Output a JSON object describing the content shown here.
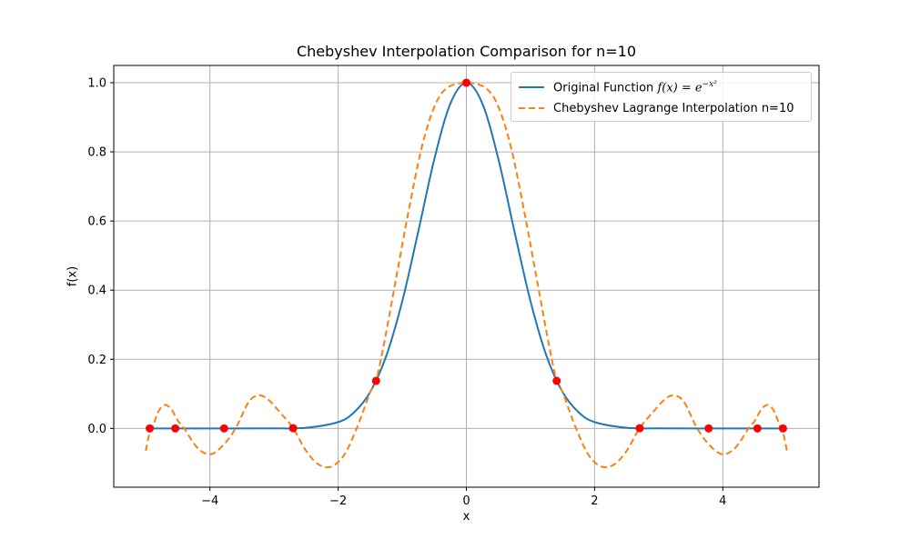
{
  "chart_data": {
    "type": "line",
    "title": "Chebyshev Interpolation Comparison for n=10",
    "xlabel": "x",
    "ylabel": "f(x)",
    "xlim": [
      -5.5,
      5.5
    ],
    "ylim": [
      -0.17,
      1.05
    ],
    "x_ticks": [
      -4,
      -2,
      0,
      2,
      4
    ],
    "x_tick_labels": [
      "−4",
      "−2",
      "0",
      "2",
      "4"
    ],
    "y_ticks": [
      0.0,
      0.2,
      0.4,
      0.6,
      0.8,
      1.0
    ],
    "y_tick_labels": [
      "0.0",
      "0.2",
      "0.4",
      "0.6",
      "0.8",
      "1.0"
    ],
    "grid": true,
    "legend_position": "upper right",
    "series": [
      {
        "name": "Original Function f(x) = e^{-x^2}",
        "style": "solid",
        "color": "#1f77b4",
        "x": [
          -5.0,
          -4.0,
          -3.0,
          -2.5,
          -2.0,
          -1.75,
          -1.5,
          -1.25,
          -1.0,
          -0.75,
          -0.5,
          -0.25,
          0.0,
          0.25,
          0.5,
          0.75,
          1.0,
          1.25,
          1.5,
          1.75,
          2.0,
          2.5,
          3.0,
          4.0,
          5.0
        ],
        "y": [
          0.0,
          0.0,
          0.0001,
          0.0019,
          0.0183,
          0.0468,
          0.1054,
          0.2096,
          0.3679,
          0.5698,
          0.7788,
          0.9394,
          1.0,
          0.9394,
          0.7788,
          0.5698,
          0.3679,
          0.2096,
          0.1054,
          0.0468,
          0.0183,
          0.0019,
          0.0001,
          0.0,
          0.0
        ]
      },
      {
        "name": "Chebyshev Lagrange Interpolation n=10",
        "style": "dashed",
        "color": "#ff7f0e",
        "x": [
          -5.0,
          -4.95,
          -4.9,
          -4.8,
          -4.7,
          -4.6,
          -4.5,
          -4.4,
          -4.2,
          -4.0,
          -3.8,
          -3.6,
          -3.4,
          -3.25,
          -3.1,
          -2.9,
          -2.7,
          -2.5,
          -2.3,
          -2.1,
          -1.9,
          -1.7,
          -1.5,
          -1.414,
          -1.3,
          -1.1,
          -0.9,
          -0.7,
          -0.5,
          -0.3,
          0.0,
          0.3,
          0.5,
          0.7,
          0.9,
          1.1,
          1.3,
          1.414,
          1.5,
          1.7,
          1.9,
          2.1,
          2.3,
          2.5,
          2.7,
          2.9,
          3.1,
          3.25,
          3.4,
          3.6,
          3.8,
          4.0,
          4.2,
          4.4,
          4.5,
          4.6,
          4.7,
          4.8,
          4.9,
          4.95,
          5.0
        ],
        "y": [
          -0.065,
          -0.02,
          0.0,
          0.05,
          0.068,
          0.055,
          0.022,
          0.0,
          -0.055,
          -0.075,
          -0.05,
          0.0,
          0.075,
          0.095,
          0.085,
          0.045,
          0.0,
          -0.065,
          -0.105,
          -0.11,
          -0.075,
          0.005,
          0.105,
          0.1353,
          0.23,
          0.43,
          0.63,
          0.81,
          0.93,
          0.985,
          1.0,
          0.985,
          0.93,
          0.81,
          0.63,
          0.43,
          0.23,
          0.1353,
          0.105,
          0.005,
          -0.075,
          -0.11,
          -0.105,
          -0.065,
          0.0,
          0.045,
          0.085,
          0.095,
          0.075,
          0.0,
          -0.05,
          -0.075,
          -0.055,
          0.0,
          0.022,
          0.055,
          0.068,
          0.05,
          0.0,
          -0.02,
          -0.065
        ]
      }
    ],
    "nodes": {
      "color": "#ff0000",
      "x": [
        -4.9384,
        -4.5399,
        -3.7787,
        -2.7032,
        -1.4087,
        0.0,
        1.4087,
        2.7032,
        3.7787,
        4.5399,
        4.9384
      ],
      "y": [
        0.0,
        0.0,
        0.0,
        0.0007,
        0.1375,
        1.0,
        0.1375,
        0.0007,
        0.0,
        0.0,
        0.0
      ]
    }
  },
  "legend": {
    "item1_text": "Original Function ",
    "item1_math": "f(x) = e",
    "item1_sup": "−x²",
    "item2_text": "Chebyshev Lagrange Interpolation n=10"
  }
}
